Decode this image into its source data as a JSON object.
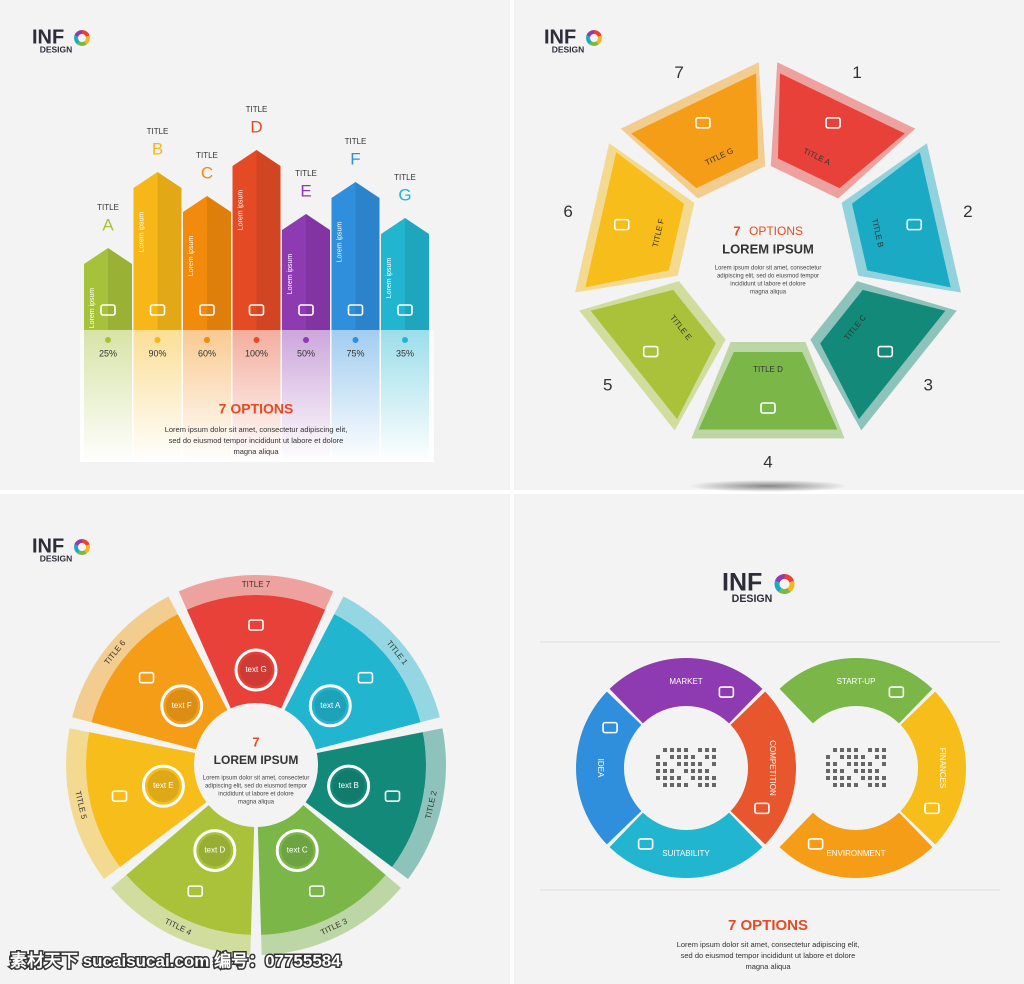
{
  "panel1": {
    "logo": {
      "text": "INF",
      "sub": "DESIGN"
    },
    "items": [
      {
        "title": "TITLE",
        "letter": "A",
        "note": "Lorem ipsum",
        "percent": "25%"
      },
      {
        "title": "TITLE",
        "letter": "B",
        "note": "Lorem ipsum",
        "percent": "90%"
      },
      {
        "title": "TITLE",
        "letter": "C",
        "note": "Lorem ipsum",
        "percent": "60%"
      },
      {
        "title": "TITLE",
        "letter": "D",
        "note": "Lorem ipsum",
        "percent": "100%"
      },
      {
        "title": "TITLE",
        "letter": "E",
        "note": "Lorem ipsum",
        "percent": "50%"
      },
      {
        "title": "TITLE",
        "letter": "F",
        "note": "Lorem ipsum",
        "percent": "75%"
      },
      {
        "title": "TITLE",
        "letter": "G",
        "note": "Lorem ipsum",
        "percent": "35%"
      }
    ],
    "heading": "7 OPTIONS",
    "body": [
      "Lorem ipsum dolor sit amet, consectetur adipiscing elit,",
      "sed do eiusmod tempor incididunt ut labore et dolore",
      "magna aliqua"
    ]
  },
  "panel2": {
    "logo": {
      "text": "INF",
      "sub": "DESIGN"
    },
    "segments": [
      {
        "number": "1",
        "title": "TITLE A"
      },
      {
        "number": "2",
        "title": "TITLE B"
      },
      {
        "number": "3",
        "title": "TITLE C"
      },
      {
        "number": "4",
        "title": "TITLE D"
      },
      {
        "number": "5",
        "title": "TITLE E"
      },
      {
        "number": "6",
        "title": "TITLE F"
      },
      {
        "number": "7",
        "title": "TITLE G"
      }
    ],
    "heading_number": "7",
    "heading": "OPTIONS",
    "subheading": "LOREM IPSUM",
    "body": [
      "Lorem ipsum dolor sit amet, consectetur",
      "adipiscing elit, sed do eiusmod tempor",
      "incididunt ut labore et dolore",
      "magna aliqua"
    ]
  },
  "panel3": {
    "logo": {
      "text": "INF",
      "sub": "DESIGN"
    },
    "segments": [
      {
        "title": "TITLE 1",
        "text": "text A"
      },
      {
        "title": "TITLE 2",
        "text": "text B"
      },
      {
        "title": "TITLE 3",
        "text": "text C"
      },
      {
        "title": "TITLE 4",
        "text": "text D"
      },
      {
        "title": "TITLE 5",
        "text": "text E"
      },
      {
        "title": "TITLE 6",
        "text": "text F"
      },
      {
        "title": "TITLE 7",
        "text": "text G"
      }
    ],
    "heading_number": "7",
    "subheading": "LOREM IPSUM",
    "body": [
      "Lorem ipsum dolor sit amet, consectetur",
      "adipiscing elit, sed do eiusmod tempor",
      "incididunt ut labore et dolore",
      "magna aliqua"
    ]
  },
  "panel4": {
    "logo": {
      "text": "INF",
      "sub": "DESIGN"
    },
    "segments": [
      "MARKET",
      "IDEA",
      "SUITABILITY",
      "COMPETITION",
      "START-UP",
      "FINANCES",
      "ENVIRONMENT"
    ],
    "heading": "7 OPTIONS",
    "body": [
      "Lorem ipsum dolor sit amet, consectetur adipiscing elit,",
      "sed do eiusmod tempor incididunt ut labore et dolore",
      "magna aliqua"
    ]
  },
  "watermark": "素材天下 sucaisucai.com  编号：07755584"
}
